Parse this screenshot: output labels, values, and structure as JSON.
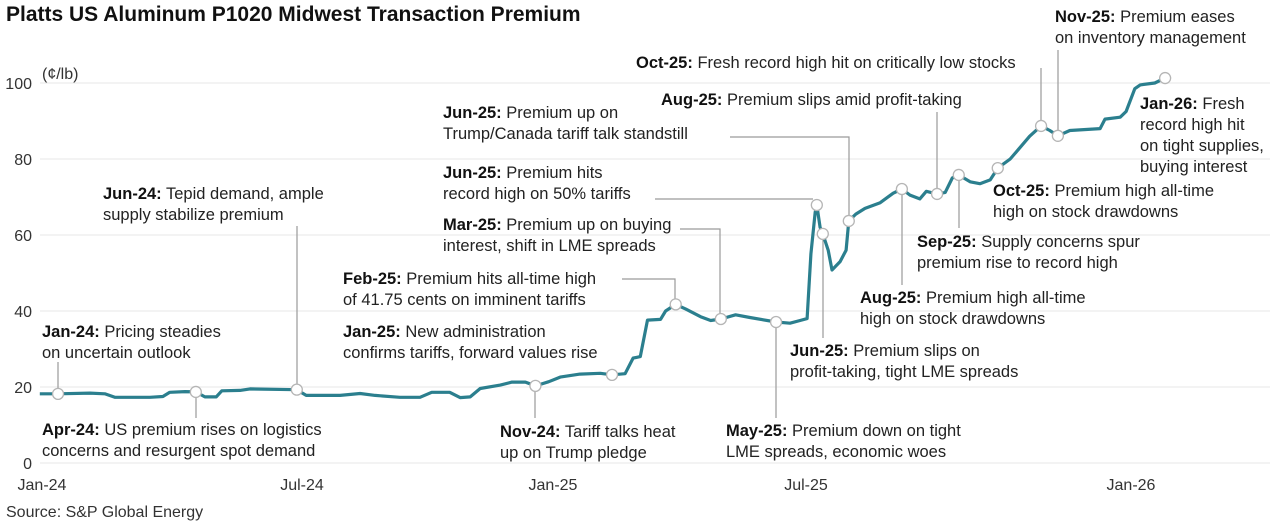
{
  "chart_data": {
    "type": "line",
    "title": "Platts US Aluminum P1020 Midwest Transaction Premium",
    "ylabel": "(¢/lb)",
    "xlabel": "",
    "ylim": [
      0,
      100
    ],
    "yticks": [
      0,
      20,
      40,
      60,
      80,
      100
    ],
    "x_unit": "months since Jan-24",
    "xticks": [
      {
        "x": 0,
        "label": "Jan-24"
      },
      {
        "x": 6,
        "label": "Jul-24"
      },
      {
        "x": 12,
        "label": "Jan-25"
      },
      {
        "x": 18,
        "label": "Jul-25"
      },
      {
        "x": 24,
        "label": "Jan-26"
      }
    ],
    "grid": true,
    "series": [
      {
        "name": "Midwest Transaction Premium",
        "color": "#2b7f8e",
        "x": [
          -0.05,
          0.37,
          1.11,
          1.45,
          1.68,
          2.49,
          2.79,
          2.95,
          3.3,
          3.55,
          3.76,
          4.02,
          4.15,
          4.57,
          4.8,
          5.88,
          6.1,
          6.91,
          7.39,
          7.75,
          8.34,
          8.82,
          9.1,
          9.53,
          9.78,
          10.02,
          10.26,
          10.74,
          11.02,
          11.34,
          11.58,
          11.9,
          12.17,
          12.64,
          13.12,
          13.4,
          13.71,
          13.9,
          14.07,
          14.24,
          14.55,
          14.67,
          14.91,
          15.15,
          15.5,
          15.74,
          15.98,
          16.33,
          16.67,
          17.29,
          17.62,
          17.86,
          18.02,
          18.09,
          18.17,
          18.2,
          18.26,
          18.31,
          18.41,
          18.48,
          18.63,
          18.74,
          18.79,
          18.92,
          19.09,
          19.37,
          19.61,
          19.77,
          19.92,
          20.1,
          20.22,
          20.42,
          20.57,
          20.7,
          20.82,
          21.03,
          21.21,
          21.4,
          21.54,
          21.77,
          21.95,
          22.13,
          22.34,
          22.5,
          22.65,
          22.87,
          23.43,
          23.52,
          23.8,
          23.91,
          24.07,
          24.17,
          24.44,
          24.63
        ],
        "y": [
          18.2,
          18.2,
          18.4,
          18.2,
          17.3,
          17.3,
          17.5,
          18.6,
          18.8,
          18.7,
          17.4,
          17.4,
          19.0,
          19.1,
          19.5,
          19.3,
          17.8,
          17.8,
          18.3,
          17.8,
          17.3,
          17.3,
          18.6,
          18.6,
          17.2,
          17.4,
          19.6,
          20.5,
          21.3,
          21.3,
          20.3,
          21.4,
          22.6,
          23.4,
          23.6,
          23.2,
          23.5,
          27.6,
          28,
          37.6,
          37.8,
          40,
          41.75,
          40.5,
          38.5,
          37.5,
          37.9,
          39,
          38.3,
          37.1,
          36.8,
          37.5,
          38,
          55,
          66,
          67.9,
          62,
          60.3,
          56,
          50.8,
          53,
          56,
          63.7,
          65.5,
          67,
          68.5,
          71,
          72.1,
          70.5,
          69.5,
          71.5,
          70.8,
          71.2,
          75,
          75.8,
          74,
          73.5,
          74.5,
          77.6,
          80,
          83,
          86,
          88.7,
          87.5,
          86.1,
          87.5,
          88,
          90.5,
          91,
          92.5,
          98.5,
          99.5,
          100,
          101.3
        ]
      }
    ],
    "annotations": [
      {
        "id": "jan24",
        "x": 0.37,
        "y": 18.2,
        "label": "Jan-24:",
        "lines": [
          "Pricing steadies",
          "on uncertain outlook"
        ]
      },
      {
        "id": "apr24",
        "x": 3.55,
        "y": 18.7,
        "label": "Apr-24:",
        "lines": [
          "US premium rises on logistics",
          "concerns and resurgent spot demand"
        ]
      },
      {
        "id": "jun24",
        "x": 5.88,
        "y": 19.3,
        "label": "Jun-24:",
        "lines": [
          "Tepid demand, ample",
          "supply stabilize premium"
        ]
      },
      {
        "id": "nov24",
        "x": 11.58,
        "y": 20.3,
        "label": "Nov-24:",
        "lines": [
          "Tariff talks heat",
          "up on Trump pledge"
        ]
      },
      {
        "id": "jan25",
        "x": 13.4,
        "y": 23.2,
        "label": "Jan-25:",
        "lines": [
          "New administration",
          "confirms tariffs, forward values rise"
        ]
      },
      {
        "id": "feb25",
        "x": 14.91,
        "y": 41.75,
        "label": "Feb-25:",
        "lines": [
          "Premium hits all-time high",
          "of 41.75 cents on imminent tariffs"
        ]
      },
      {
        "id": "mar25",
        "x": 15.98,
        "y": 37.9,
        "label": "Mar-25:",
        "lines": [
          "Premium up on buying",
          "interest, shift in LME spreads"
        ]
      },
      {
        "id": "may25",
        "x": 17.29,
        "y": 37.1,
        "label": "May-25:",
        "lines": [
          "Premium down on tight",
          "LME spreads, economic woes"
        ]
      },
      {
        "id": "jun25a",
        "x": 18.2,
        "y": 67.9,
        "label": "Jun-25:",
        "lines": [
          "Premium hits",
          "record high on 50% tariffs"
        ]
      },
      {
        "id": "jun25b",
        "x": 18.31,
        "y": 60.3,
        "label": "Jun-25:",
        "lines": [
          "Premium slips on",
          "profit-taking, tight LME spreads"
        ]
      },
      {
        "id": "jun25c",
        "x": 18.79,
        "y": 63.7,
        "label": "Jun-25:",
        "lines": [
          "Premium up on",
          "Trump/Canada tariff talk standstill"
        ]
      },
      {
        "id": "aug25a",
        "x": 19.77,
        "y": 72.1,
        "label": "Aug-25:",
        "lines": [
          "Premium high all-time",
          "high on stock drawdowns"
        ]
      },
      {
        "id": "aug25b",
        "x": 20.42,
        "y": 70.8,
        "label": "Aug-25:",
        "lines": [
          "Premium slips amid profit-taking"
        ]
      },
      {
        "id": "sep25",
        "x": 20.82,
        "y": 75.8,
        "label": "Sep-25:",
        "lines": [
          " Supply concerns spur",
          "premium rise to record high"
        ]
      },
      {
        "id": "oct25a",
        "x": 21.54,
        "y": 77.6,
        "label": "Oct-25:",
        "lines": [
          "Premium high all-time",
          "high on stock drawdowns"
        ]
      },
      {
        "id": "oct25b",
        "x": 22.34,
        "y": 88.7,
        "label": "Oct-25:",
        "lines": [
          "Fresh record high hit on critically low stocks"
        ]
      },
      {
        "id": "nov25",
        "x": 22.65,
        "y": 86.1,
        "label": "Nov-25:",
        "lines": [
          "Premium eases",
          "on inventory management"
        ]
      },
      {
        "id": "jan26",
        "x": 24.63,
        "y": 101.3,
        "label": "Jan-26:",
        "lines": [
          "Fresh",
          "record high hit",
          "on tight supplies,",
          "buying interest"
        ]
      }
    ]
  },
  "source": "Source: S&P Global Energy"
}
